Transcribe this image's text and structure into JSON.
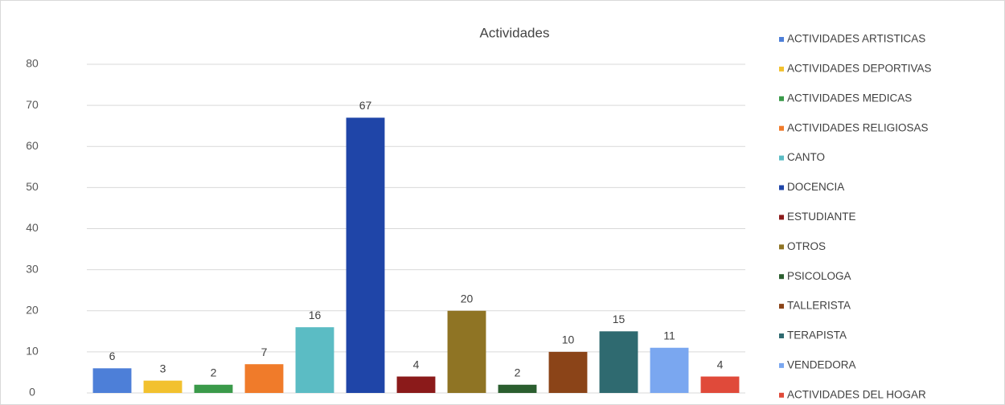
{
  "chart_data": {
    "type": "bar",
    "title": "Actividades",
    "categories": [
      "ACTIVIDADES ARTISTICAS",
      "ACTIVIDADES DEPORTIVAS",
      "ACTIVIDADES MEDICAS",
      "ACTIVIDADES RELIGIOSAS",
      "CANTO",
      "DOCENCIA",
      "ESTUDIANTE",
      "OTROS",
      "PSICOLOGA",
      "TALLERISTA",
      "TERAPISTA",
      "VENDEDORA",
      "ACTIVIDADES DEL HOGAR"
    ],
    "values": [
      6,
      3,
      2,
      7,
      16,
      67,
      4,
      20,
      2,
      10,
      15,
      11,
      4
    ],
    "colors": [
      "#4d7fd8",
      "#f2c12e",
      "#3a9a4a",
      "#f07b2a",
      "#5bbcc4",
      "#1f45a8",
      "#8b1a1a",
      "#8f7424",
      "#2b5e2f",
      "#8b4418",
      "#2f6a70",
      "#7aa7f0",
      "#e04a3a"
    ],
    "ylim": [
      0,
      80
    ],
    "yticks": [
      0,
      10,
      20,
      30,
      40,
      50,
      60,
      70,
      80
    ],
    "grid": true,
    "legend": "right"
  }
}
